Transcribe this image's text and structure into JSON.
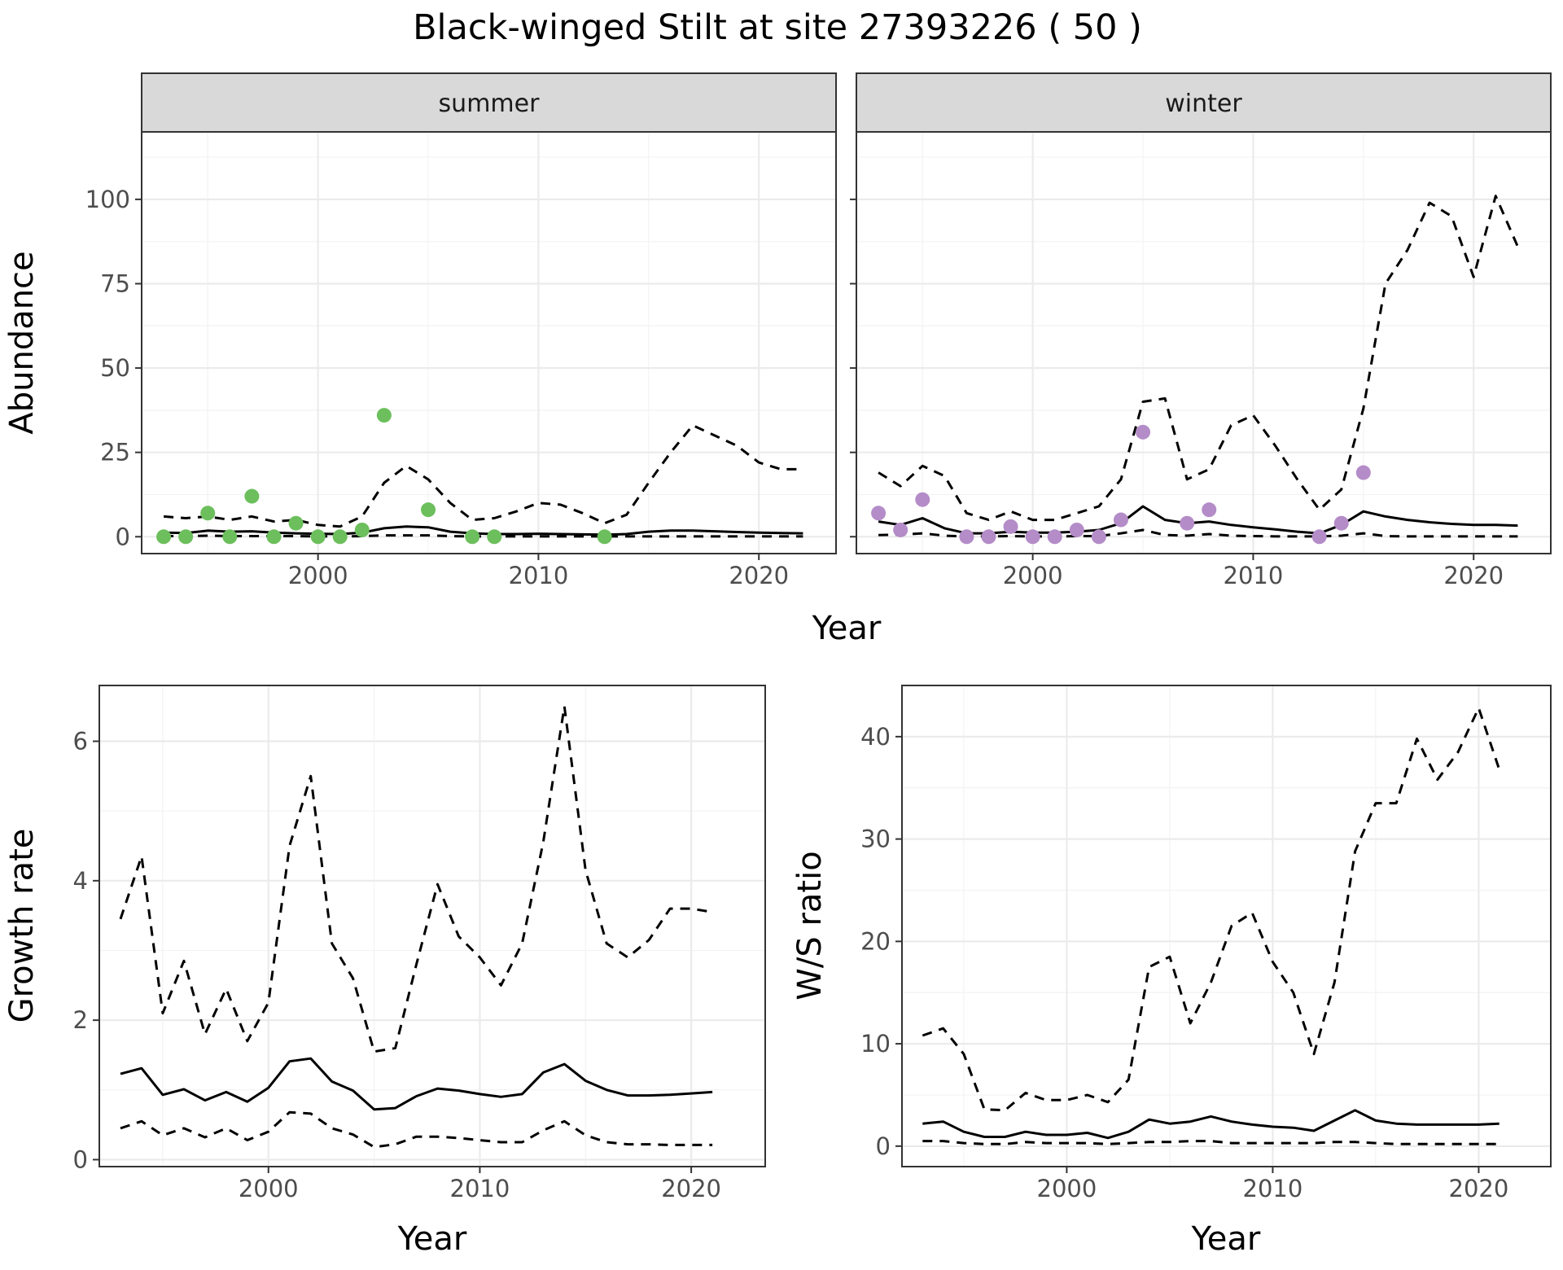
{
  "title": "Black-winged Stilt at site 27393226 ( 50 )",
  "colors": {
    "summer_points": "#6cbf5c",
    "winter_points": "#b48cc8"
  },
  "chart_data": [
    {
      "id": "abundance",
      "type": "line",
      "ylabel": "Abundance",
      "xlabel": "Year",
      "xlim": [
        1992,
        2023.5
      ],
      "ylim": [
        -5,
        120
      ],
      "xticks": [
        2000,
        2010,
        2020
      ],
      "yticks": [
        0,
        25,
        50,
        75,
        100
      ],
      "facets": [
        {
          "strip": "summer",
          "points": {
            "x": [
              1993,
              1994,
              1995,
              1996,
              1997,
              1998,
              1999,
              2000,
              2001,
              2002,
              2003,
              2005,
              2007,
              2008,
              2013
            ],
            "y": [
              0,
              0,
              7,
              0,
              12,
              0,
              4,
              0,
              0,
              2,
              36,
              8,
              0,
              0,
              0
            ]
          },
          "series": [
            {
              "style": "solid",
              "x": [
                1993,
                1994,
                1995,
                1996,
                1997,
                1998,
                1999,
                2000,
                2001,
                2002,
                2003,
                2004,
                2005,
                2006,
                2007,
                2008,
                2009,
                2010,
                2011,
                2012,
                2013,
                2014,
                2015,
                2016,
                2017,
                2018,
                2019,
                2020,
                2021,
                2022
              ],
              "y": [
                1.2,
                1.1,
                1.8,
                1.5,
                1.6,
                1.2,
                1.0,
                0.9,
                0.8,
                1.2,
                2.5,
                3.0,
                2.8,
                1.5,
                1.0,
                0.8,
                0.8,
                0.9,
                0.8,
                0.7,
                0.6,
                0.8,
                1.5,
                1.8,
                1.8,
                1.6,
                1.4,
                1.2,
                1.1,
                1.0
              ]
            },
            {
              "style": "dashed",
              "x": [
                1993,
                1994,
                1995,
                1996,
                1997,
                1998,
                1999,
                2000,
                2001,
                2002,
                2003,
                2004,
                2005,
                2006,
                2007,
                2008,
                2009,
                2010,
                2011,
                2012,
                2013,
                2014,
                2015,
                2016,
                2017,
                2018,
                2019,
                2020,
                2021,
                2022
              ],
              "y": [
                6,
                5.5,
                6,
                5,
                6,
                4.5,
                5,
                3.5,
                3,
                6,
                16,
                21,
                17,
                10,
                5,
                5.5,
                7.5,
                10,
                9.5,
                7,
                4,
                6.5,
                16,
                25,
                33,
                30,
                27,
                22,
                20,
                20
              ]
            },
            {
              "style": "dashed",
              "x": [
                1993,
                1994,
                1995,
                1996,
                1997,
                1998,
                1999,
                2000,
                2001,
                2002,
                2003,
                2004,
                2005,
                2006,
                2007,
                2008,
                2009,
                2010,
                2011,
                2012,
                2013,
                2014,
                2015,
                2016,
                2017,
                2018,
                2019,
                2020,
                2021,
                2022
              ],
              "y": [
                0.2,
                0.2,
                0.3,
                0.2,
                0.2,
                0.2,
                0.2,
                0.1,
                0.1,
                0.2,
                0.4,
                0.4,
                0.4,
                0.2,
                0.1,
                0.1,
                0.1,
                0.1,
                0.1,
                0.1,
                0.1,
                0.1,
                0.1,
                0.1,
                0.1,
                0.1,
                0.1,
                0.1,
                0.1,
                0.1
              ]
            }
          ]
        },
        {
          "strip": "winter",
          "points": {
            "x": [
              1993,
              1994,
              1995,
              1997,
              1998,
              1999,
              2000,
              2001,
              2002,
              2003,
              2004,
              2005,
              2007,
              2008,
              2013,
              2014,
              2015
            ],
            "y": [
              7,
              2,
              11,
              0,
              0,
              3,
              0,
              0,
              2,
              0,
              5,
              31,
              4,
              8,
              0,
              4,
              19
            ]
          },
          "series": [
            {
              "style": "solid",
              "x": [
                1993,
                1994,
                1995,
                1996,
                1997,
                1998,
                1999,
                2000,
                2001,
                2002,
                2003,
                2004,
                2005,
                2006,
                2007,
                2008,
                2009,
                2010,
                2011,
                2012,
                2013,
                2014,
                2015,
                2016,
                2017,
                2018,
                2019,
                2020,
                2021,
                2022
              ],
              "y": [
                4.5,
                3.5,
                5.5,
                2.5,
                1.0,
                1.0,
                1.5,
                1.2,
                1.2,
                1.5,
                2.0,
                4.0,
                9.0,
                5.0,
                4.0,
                4.5,
                3.5,
                2.8,
                2.2,
                1.5,
                1.0,
                3.5,
                7.5,
                6.0,
                5.0,
                4.3,
                3.8,
                3.5,
                3.5,
                3.3
              ]
            },
            {
              "style": "dashed",
              "x": [
                1993,
                1994,
                1995,
                1996,
                1997,
                1998,
                1999,
                2000,
                2001,
                2002,
                2003,
                2004,
                2005,
                2006,
                2007,
                2008,
                2009,
                2010,
                2011,
                2012,
                2013,
                2014,
                2015,
                2016,
                2017,
                2018,
                2019,
                2020,
                2021,
                2022
              ],
              "y": [
                19,
                15,
                21,
                18,
                7,
                5,
                7.5,
                5,
                5,
                7,
                9,
                17,
                40,
                41,
                17,
                20,
                33,
                36,
                27,
                17,
                8,
                14,
                38,
                75,
                85,
                99,
                95,
                77,
                101,
                86
              ]
            },
            {
              "style": "dashed",
              "x": [
                1993,
                1994,
                1995,
                1996,
                1997,
                1998,
                1999,
                2000,
                2001,
                2002,
                2003,
                2004,
                2005,
                2006,
                2007,
                2008,
                2009,
                2010,
                2011,
                2012,
                2013,
                2014,
                2015,
                2016,
                2017,
                2018,
                2019,
                2020,
                2021,
                2022
              ],
              "y": [
                0.5,
                0.6,
                1.0,
                0.3,
                0.1,
                0.1,
                0.2,
                0.1,
                0.1,
                0.2,
                0.2,
                1.0,
                2.0,
                0.5,
                0.3,
                0.8,
                0.3,
                0.2,
                0.1,
                0.1,
                0.1,
                0.3,
                1.0,
                0.2,
                0.1,
                0.1,
                0.1,
                0.1,
                0.1,
                0.1
              ]
            }
          ]
        }
      ]
    },
    {
      "id": "growth",
      "type": "line",
      "ylabel": "Growth rate",
      "xlabel": "Year",
      "xlim": [
        1992,
        2023.5
      ],
      "ylim": [
        -0.1,
        6.8
      ],
      "xticks": [
        2000,
        2010,
        2020
      ],
      "yticks": [
        0,
        2,
        4,
        6
      ],
      "series": [
        {
          "style": "solid",
          "x": [
            1993,
            1994,
            1995,
            1996,
            1997,
            1998,
            1999,
            2000,
            2001,
            2002,
            2003,
            2004,
            2005,
            2006,
            2007,
            2008,
            2009,
            2010,
            2011,
            2012,
            2013,
            2014,
            2015,
            2016,
            2017,
            2018,
            2019,
            2020,
            2021
          ],
          "y": [
            1.23,
            1.31,
            0.93,
            1.01,
            0.85,
            0.97,
            0.83,
            1.03,
            1.41,
            1.45,
            1.12,
            0.99,
            0.72,
            0.74,
            0.91,
            1.02,
            0.99,
            0.94,
            0.9,
            0.94,
            1.25,
            1.37,
            1.13,
            1.0,
            0.92,
            0.92,
            0.93,
            0.95,
            0.97
          ]
        },
        {
          "style": "dashed",
          "x": [
            1993,
            1994,
            1995,
            1996,
            1997,
            1998,
            1999,
            2000,
            2001,
            2002,
            2003,
            2004,
            2005,
            2006,
            2007,
            2008,
            2009,
            2010,
            2011,
            2012,
            2013,
            2014,
            2015,
            2016,
            2017,
            2018,
            2019,
            2020,
            2021
          ],
          "y": [
            3.45,
            4.35,
            2.1,
            2.85,
            1.8,
            2.45,
            1.7,
            2.25,
            4.5,
            5.5,
            3.1,
            2.6,
            1.55,
            1.6,
            2.8,
            3.95,
            3.2,
            2.9,
            2.5,
            3.1,
            4.55,
            6.5,
            4.15,
            3.1,
            2.9,
            3.15,
            3.6,
            3.6,
            3.55
          ]
        },
        {
          "style": "dashed",
          "x": [
            1993,
            1994,
            1995,
            1996,
            1997,
            1998,
            1999,
            2000,
            2001,
            2002,
            2003,
            2004,
            2005,
            2006,
            2007,
            2008,
            2009,
            2010,
            2011,
            2012,
            2013,
            2014,
            2015,
            2016,
            2017,
            2018,
            2019,
            2020,
            2021
          ],
          "y": [
            0.45,
            0.55,
            0.35,
            0.45,
            0.32,
            0.45,
            0.28,
            0.4,
            0.68,
            0.66,
            0.45,
            0.36,
            0.18,
            0.22,
            0.33,
            0.33,
            0.31,
            0.28,
            0.25,
            0.25,
            0.42,
            0.55,
            0.35,
            0.25,
            0.22,
            0.22,
            0.21,
            0.21,
            0.21
          ]
        }
      ]
    },
    {
      "id": "ws_ratio",
      "type": "line",
      "ylabel": "W/S ratio",
      "xlabel": "Year",
      "xlim": [
        1992,
        2023.5
      ],
      "ylim": [
        -2,
        45
      ],
      "xticks": [
        2000,
        2010,
        2020
      ],
      "yticks": [
        0,
        10,
        20,
        30,
        40
      ],
      "series": [
        {
          "style": "solid",
          "x": [
            1993,
            1994,
            1995,
            1996,
            1997,
            1998,
            1999,
            2000,
            2001,
            2002,
            2003,
            2004,
            2005,
            2006,
            2007,
            2008,
            2009,
            2010,
            2011,
            2012,
            2013,
            2014,
            2015,
            2016,
            2017,
            2018,
            2019,
            2020,
            2021
          ],
          "y": [
            2.2,
            2.4,
            1.4,
            0.9,
            0.9,
            1.4,
            1.1,
            1.1,
            1.3,
            0.8,
            1.4,
            2.6,
            2.2,
            2.4,
            2.9,
            2.4,
            2.1,
            1.9,
            1.8,
            1.5,
            2.5,
            3.5,
            2.5,
            2.2,
            2.1,
            2.1,
            2.1,
            2.1,
            2.2
          ]
        },
        {
          "style": "dashed",
          "x": [
            1993,
            1994,
            1995,
            1996,
            1997,
            1998,
            1999,
            2000,
            2001,
            2002,
            2003,
            2004,
            2005,
            2006,
            2007,
            2008,
            2009,
            2010,
            2011,
            2012,
            2013,
            2014,
            2015,
            2016,
            2017,
            2018,
            2019,
            2020,
            2021
          ],
          "y": [
            10.8,
            11.5,
            9.0,
            3.6,
            3.5,
            5.2,
            4.5,
            4.5,
            5.0,
            4.3,
            6.5,
            17.5,
            18.5,
            12.0,
            16.0,
            21.5,
            22.8,
            18.0,
            15.0,
            9.0,
            16.0,
            28.8,
            33.5,
            33.5,
            39.8,
            35.8,
            38.5,
            42.8,
            36.8
          ]
        },
        {
          "style": "dashed",
          "x": [
            1993,
            1994,
            1995,
            1996,
            1997,
            1998,
            1999,
            2000,
            2001,
            2002,
            2003,
            2004,
            2005,
            2006,
            2007,
            2008,
            2009,
            2010,
            2011,
            2012,
            2013,
            2014,
            2015,
            2016,
            2017,
            2018,
            2019,
            2020,
            2021
          ],
          "y": [
            0.5,
            0.5,
            0.3,
            0.2,
            0.2,
            0.4,
            0.3,
            0.3,
            0.3,
            0.2,
            0.3,
            0.4,
            0.4,
            0.5,
            0.5,
            0.3,
            0.3,
            0.3,
            0.3,
            0.3,
            0.4,
            0.4,
            0.3,
            0.2,
            0.2,
            0.2,
            0.2,
            0.2,
            0.2
          ]
        }
      ]
    }
  ]
}
